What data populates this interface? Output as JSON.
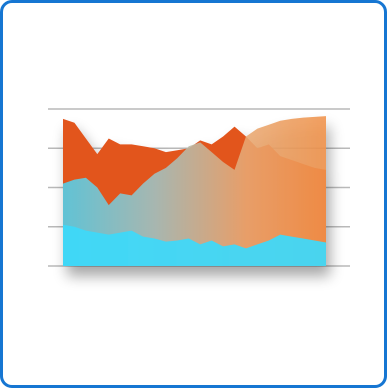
{
  "chart_data": {
    "type": "area",
    "x": [
      0,
      1,
      2,
      3,
      4,
      5,
      6,
      7,
      8,
      9,
      10,
      11,
      12,
      13,
      14,
      15,
      16,
      17,
      18,
      19,
      20,
      21,
      22,
      23
    ],
    "ylim": [
      0,
      4
    ],
    "grid": true,
    "series": [
      {
        "color": "#e2541f",
        "values": [
          3.75,
          3.65,
          3.25,
          2.85,
          3.25,
          3.1,
          3.1,
          3.05,
          3.0,
          2.9,
          2.95,
          3.0,
          3.2,
          3.1,
          3.3,
          3.55,
          3.3,
          3.0,
          3.1,
          2.8,
          2.7,
          2.6,
          2.5,
          2.45
        ]
      },
      {
        "color": "#f0974f",
        "values": [
          2.1,
          2.2,
          2.25,
          2.0,
          1.55,
          1.85,
          1.8,
          2.1,
          2.35,
          2.5,
          2.75,
          3.05,
          3.15,
          2.9,
          2.65,
          2.45,
          3.3,
          3.5,
          3.6,
          3.7,
          3.75,
          3.78,
          3.8,
          3.82
        ]
      },
      {
        "color": "#3fd8f8",
        "values": [
          1.05,
          1.0,
          0.9,
          0.85,
          0.8,
          0.85,
          0.9,
          0.75,
          0.7,
          0.62,
          0.65,
          0.7,
          0.55,
          0.65,
          0.5,
          0.55,
          0.45,
          0.55,
          0.65,
          0.8,
          0.75,
          0.7,
          0.65,
          0.6
        ]
      }
    ]
  }
}
